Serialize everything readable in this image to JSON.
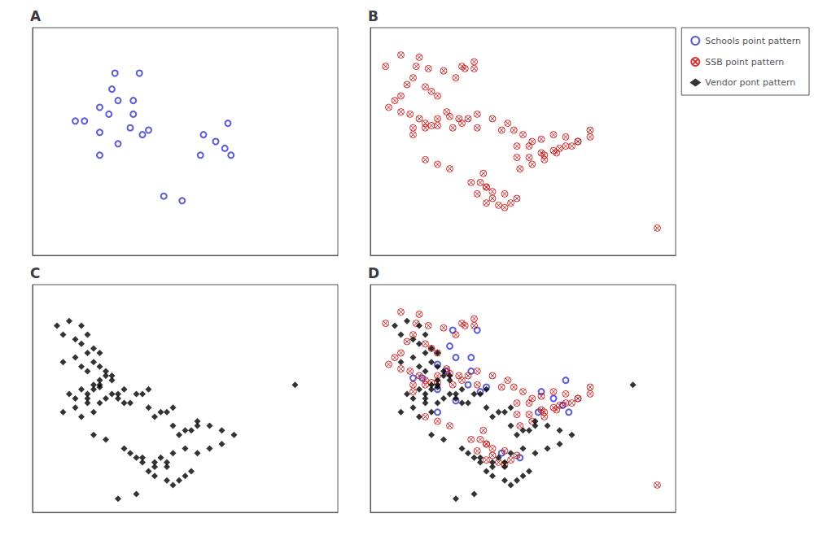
{
  "chart_data": [
    {
      "type": "scatter",
      "title": "A",
      "xlim": [
        0,
        1
      ],
      "ylim": [
        0,
        1
      ],
      "xticks": [],
      "yticks": [],
      "grid": false,
      "tick_labels": false,
      "background_color": "#ffffff",
      "series": [
        {
          "name": "Schools point pattern",
          "color": "#3333cc",
          "marker": "circle",
          "x": [
            0.27,
            0.35,
            0.26,
            0.28,
            0.33,
            0.22,
            0.25,
            0.33,
            0.14,
            0.22,
            0.32,
            0.38,
            0.64,
            0.56,
            0.6,
            0.63,
            0.65,
            0.55,
            0.28,
            0.22,
            0.17,
            0.36,
            0.43,
            0.49
          ],
          "values": [
            0.8,
            0.8,
            0.73,
            0.68,
            0.68,
            0.65,
            0.62,
            0.62,
            0.59,
            0.54,
            0.56,
            0.55,
            0.58,
            0.53,
            0.5,
            0.47,
            0.44,
            0.44,
            0.49,
            0.44,
            0.59,
            0.53,
            0.26,
            0.24
          ]
        }
      ]
    },
    {
      "type": "scatter",
      "title": "B",
      "xlim": [
        0,
        1
      ],
      "ylim": [
        0,
        1
      ],
      "xticks": [],
      "yticks": [],
      "grid": false,
      "tick_labels": false,
      "series": [
        {
          "name": "SSB point pattern",
          "color": "#cc0000",
          "marker": "circle-x",
          "x": [
            0.1,
            0.16,
            0.05,
            0.15,
            0.19,
            0.24,
            0.3,
            0.34,
            0.34,
            0.31,
            0.28,
            0.14,
            0.12,
            0.18,
            0.2,
            0.22,
            0.1,
            0.08,
            0.06,
            0.1,
            0.13,
            0.16,
            0.18,
            0.14,
            0.2,
            0.25,
            0.22,
            0.18,
            0.14,
            0.26,
            0.29,
            0.22,
            0.27,
            0.32,
            0.35,
            0.3,
            0.35,
            0.4,
            0.45,
            0.43,
            0.47,
            0.5,
            0.53,
            0.56,
            0.48,
            0.52,
            0.6,
            0.64,
            0.68,
            0.72,
            0.72,
            0.68,
            0.66,
            0.64,
            0.62,
            0.6,
            0.56,
            0.52,
            0.48,
            0.57,
            0.61,
            0.57,
            0.53,
            0.49,
            0.37,
            0.33,
            0.38,
            0.35,
            0.4,
            0.38,
            0.42,
            0.44,
            0.46,
            0.48,
            0.44,
            0.4,
            0.38,
            0.36,
            0.22,
            0.26,
            0.18,
            0.94
          ],
          "values": [
            0.88,
            0.87,
            0.83,
            0.83,
            0.82,
            0.81,
            0.83,
            0.85,
            0.82,
            0.82,
            0.78,
            0.78,
            0.75,
            0.74,
            0.72,
            0.7,
            0.7,
            0.68,
            0.65,
            0.63,
            0.62,
            0.6,
            0.58,
            0.56,
            0.57,
            0.63,
            0.6,
            0.56,
            0.53,
            0.61,
            0.6,
            0.57,
            0.56,
            0.6,
            0.62,
            0.58,
            0.56,
            0.6,
            0.58,
            0.55,
            0.55,
            0.53,
            0.5,
            0.51,
            0.48,
            0.48,
            0.53,
            0.52,
            0.5,
            0.55,
            0.52,
            0.5,
            0.48,
            0.48,
            0.47,
            0.46,
            0.45,
            0.43,
            0.43,
            0.44,
            0.45,
            0.42,
            0.4,
            0.38,
            0.36,
            0.32,
            0.3,
            0.27,
            0.25,
            0.23,
            0.22,
            0.21,
            0.23,
            0.25,
            0.27,
            0.28,
            0.3,
            0.32,
            0.4,
            0.38,
            0.42,
            0.12
          ]
        }
      ]
    },
    {
      "type": "scatter",
      "title": "C",
      "xlim": [
        0,
        1
      ],
      "ylim": [
        0,
        1
      ],
      "xticks": [],
      "yticks": [],
      "grid": false,
      "tick_labels": false,
      "series": [
        {
          "name": "Vendor pont pattern",
          "color": "#000000",
          "marker": "diamond",
          "x": [
            0.08,
            0.12,
            0.16,
            0.1,
            0.14,
            0.18,
            0.16,
            0.2,
            0.18,
            0.22,
            0.14,
            0.1,
            0.16,
            0.2,
            0.18,
            0.22,
            0.24,
            0.26,
            0.22,
            0.2,
            0.16,
            0.12,
            0.18,
            0.22,
            0.14,
            0.1,
            0.16,
            0.2,
            0.18,
            0.24,
            0.26,
            0.22,
            0.18,
            0.14,
            0.2,
            0.22,
            0.26,
            0.28,
            0.3,
            0.28,
            0.24,
            0.3,
            0.34,
            0.38,
            0.36,
            0.32,
            0.38,
            0.42,
            0.46,
            0.44,
            0.4,
            0.46,
            0.5,
            0.54,
            0.52,
            0.48,
            0.54,
            0.58,
            0.62,
            0.66,
            0.62,
            0.58,
            0.54,
            0.5,
            0.46,
            0.42,
            0.44,
            0.4,
            0.36,
            0.34,
            0.38,
            0.4,
            0.44,
            0.46,
            0.48,
            0.5,
            0.52,
            0.44,
            0.4,
            0.36,
            0.32,
            0.3,
            0.34,
            0.28,
            0.24,
            0.2,
            0.86
          ],
          "values": [
            0.82,
            0.84,
            0.82,
            0.78,
            0.76,
            0.78,
            0.74,
            0.72,
            0.7,
            0.7,
            0.68,
            0.66,
            0.64,
            0.66,
            0.62,
            0.64,
            0.62,
            0.6,
            0.58,
            0.56,
            0.54,
            0.52,
            0.5,
            0.48,
            0.46,
            0.44,
            0.42,
            0.44,
            0.48,
            0.6,
            0.58,
            0.55,
            0.52,
            0.5,
            0.54,
            0.56,
            0.52,
            0.5,
            0.54,
            0.52,
            0.5,
            0.48,
            0.52,
            0.54,
            0.52,
            0.48,
            0.46,
            0.44,
            0.46,
            0.44,
            0.42,
            0.38,
            0.36,
            0.38,
            0.36,
            0.34,
            0.4,
            0.38,
            0.36,
            0.34,
            0.3,
            0.28,
            0.26,
            0.28,
            0.26,
            0.24,
            0.22,
            0.2,
            0.22,
            0.24,
            0.18,
            0.16,
            0.14,
            0.12,
            0.14,
            0.16,
            0.18,
            0.2,
            0.22,
            0.24,
            0.26,
            0.28,
            0.08,
            0.06,
            0.32,
            0.34,
            0.56
          ]
        }
      ]
    },
    {
      "type": "scatter",
      "title": "D",
      "xlim": [
        0,
        1
      ],
      "ylim": [
        0,
        1
      ],
      "xticks": [],
      "yticks": [],
      "grid": false,
      "tick_labels": false,
      "legend": "upper right",
      "series": [
        {
          "name": "Schools point pattern",
          "color": "#3333cc",
          "marker": "circle",
          "x": [
            0.27,
            0.35,
            0.26,
            0.28,
            0.33,
            0.22,
            0.25,
            0.33,
            0.14,
            0.22,
            0.32,
            0.38,
            0.64,
            0.56,
            0.6,
            0.63,
            0.65,
            0.55,
            0.28,
            0.22,
            0.17,
            0.36,
            0.43,
            0.49
          ],
          "values": [
            0.8,
            0.8,
            0.73,
            0.68,
            0.68,
            0.65,
            0.62,
            0.62,
            0.59,
            0.54,
            0.56,
            0.55,
            0.58,
            0.53,
            0.5,
            0.47,
            0.44,
            0.44,
            0.49,
            0.44,
            0.59,
            0.53,
            0.26,
            0.24
          ]
        },
        {
          "name": "SSB point pattern",
          "color": "#cc0000",
          "marker": "circle-x",
          "x": [
            0.1,
            0.16,
            0.05,
            0.15,
            0.19,
            0.24,
            0.3,
            0.34,
            0.34,
            0.31,
            0.28,
            0.14,
            0.12,
            0.18,
            0.2,
            0.22,
            0.1,
            0.08,
            0.06,
            0.1,
            0.13,
            0.16,
            0.18,
            0.14,
            0.2,
            0.25,
            0.22,
            0.18,
            0.14,
            0.26,
            0.29,
            0.22,
            0.27,
            0.32,
            0.35,
            0.3,
            0.35,
            0.4,
            0.45,
            0.43,
            0.47,
            0.5,
            0.53,
            0.56,
            0.48,
            0.52,
            0.6,
            0.64,
            0.68,
            0.72,
            0.72,
            0.68,
            0.66,
            0.64,
            0.62,
            0.6,
            0.56,
            0.52,
            0.48,
            0.57,
            0.61,
            0.57,
            0.53,
            0.49,
            0.37,
            0.33,
            0.38,
            0.35,
            0.4,
            0.38,
            0.42,
            0.44,
            0.46,
            0.48,
            0.44,
            0.4,
            0.38,
            0.36,
            0.22,
            0.26,
            0.18,
            0.94
          ],
          "values": [
            0.88,
            0.87,
            0.83,
            0.83,
            0.82,
            0.81,
            0.83,
            0.85,
            0.82,
            0.82,
            0.78,
            0.78,
            0.75,
            0.74,
            0.72,
            0.7,
            0.7,
            0.68,
            0.65,
            0.63,
            0.62,
            0.6,
            0.58,
            0.56,
            0.57,
            0.63,
            0.6,
            0.56,
            0.53,
            0.61,
            0.6,
            0.57,
            0.56,
            0.6,
            0.62,
            0.58,
            0.56,
            0.6,
            0.58,
            0.55,
            0.55,
            0.53,
            0.5,
            0.51,
            0.48,
            0.48,
            0.53,
            0.52,
            0.5,
            0.55,
            0.52,
            0.5,
            0.48,
            0.48,
            0.47,
            0.46,
            0.45,
            0.43,
            0.43,
            0.44,
            0.45,
            0.42,
            0.4,
            0.38,
            0.36,
            0.32,
            0.3,
            0.27,
            0.25,
            0.23,
            0.22,
            0.21,
            0.23,
            0.25,
            0.27,
            0.28,
            0.3,
            0.32,
            0.4,
            0.38,
            0.42,
            0.12
          ]
        },
        {
          "name": "Vendor pont pattern",
          "color": "#000000",
          "marker": "diamond",
          "x": [
            0.08,
            0.12,
            0.16,
            0.1,
            0.14,
            0.18,
            0.16,
            0.2,
            0.18,
            0.22,
            0.14,
            0.1,
            0.16,
            0.2,
            0.18,
            0.22,
            0.24,
            0.26,
            0.22,
            0.2,
            0.16,
            0.12,
            0.18,
            0.22,
            0.14,
            0.1,
            0.16,
            0.2,
            0.18,
            0.24,
            0.26,
            0.22,
            0.18,
            0.14,
            0.2,
            0.22,
            0.26,
            0.28,
            0.3,
            0.28,
            0.24,
            0.3,
            0.34,
            0.38,
            0.36,
            0.32,
            0.38,
            0.42,
            0.46,
            0.44,
            0.4,
            0.46,
            0.5,
            0.54,
            0.52,
            0.48,
            0.54,
            0.58,
            0.62,
            0.66,
            0.62,
            0.58,
            0.54,
            0.5,
            0.46,
            0.42,
            0.44,
            0.4,
            0.36,
            0.34,
            0.38,
            0.4,
            0.44,
            0.46,
            0.48,
            0.5,
            0.52,
            0.44,
            0.4,
            0.36,
            0.32,
            0.3,
            0.34,
            0.28,
            0.24,
            0.2,
            0.86
          ],
          "values": [
            0.82,
            0.84,
            0.82,
            0.78,
            0.76,
            0.78,
            0.74,
            0.72,
            0.7,
            0.7,
            0.68,
            0.66,
            0.64,
            0.66,
            0.62,
            0.64,
            0.62,
            0.6,
            0.58,
            0.56,
            0.54,
            0.52,
            0.5,
            0.48,
            0.46,
            0.44,
            0.42,
            0.44,
            0.48,
            0.6,
            0.58,
            0.55,
            0.52,
            0.5,
            0.54,
            0.56,
            0.52,
            0.5,
            0.54,
            0.52,
            0.5,
            0.48,
            0.52,
            0.54,
            0.52,
            0.48,
            0.46,
            0.44,
            0.46,
            0.44,
            0.42,
            0.38,
            0.36,
            0.38,
            0.36,
            0.34,
            0.4,
            0.38,
            0.36,
            0.34,
            0.3,
            0.28,
            0.26,
            0.28,
            0.26,
            0.24,
            0.22,
            0.2,
            0.22,
            0.24,
            0.18,
            0.16,
            0.14,
            0.12,
            0.14,
            0.16,
            0.18,
            0.2,
            0.22,
            0.24,
            0.26,
            0.28,
            0.08,
            0.06,
            0.32,
            0.34,
            0.56
          ]
        }
      ]
    }
  ]
}
